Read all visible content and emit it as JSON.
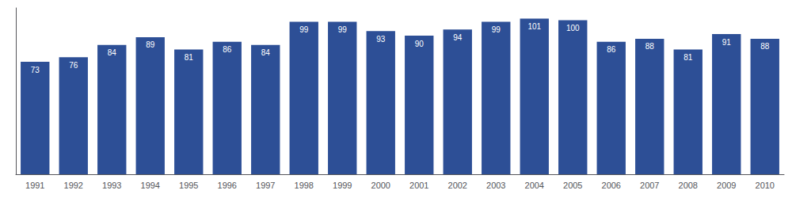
{
  "chart_data": {
    "type": "bar",
    "categories": [
      "1991",
      "1992",
      "1993",
      "1994",
      "1995",
      "1996",
      "1997",
      "1998",
      "1999",
      "2000",
      "2001",
      "2002",
      "2003",
      "2004",
      "2005",
      "2006",
      "2007",
      "2008",
      "2009",
      "2010"
    ],
    "values": [
      73,
      76,
      84,
      89,
      81,
      86,
      84,
      99,
      99,
      93,
      90,
      94,
      99,
      101,
      100,
      86,
      88,
      81,
      91,
      88
    ],
    "color": "#2d4f96",
    "ylim": [
      0,
      108
    ],
    "yticks": [],
    "grid": false,
    "data_labels": true,
    "tick_labels": "x"
  }
}
